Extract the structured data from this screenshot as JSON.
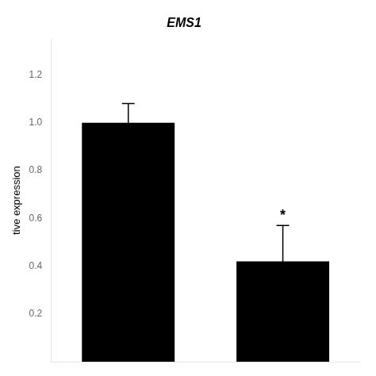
{
  "chart_data": {
    "type": "bar",
    "title": "EMS1",
    "ylabel": "tive expression",
    "categories": [
      null,
      null
    ],
    "values": [
      1.0,
      0.42
    ],
    "errors": [
      0.08,
      0.15
    ],
    "color": "#000000",
    "ylim": [
      0,
      1.35
    ],
    "yticks": [
      0.2,
      0.4,
      0.6,
      0.8,
      {
        "value": 1.0,
        "label": "1.0"
      },
      1.2
    ],
    "grid": false,
    "tick_labels": "y",
    "annotations": [
      {
        "text": "*",
        "index": 1
      }
    ]
  }
}
